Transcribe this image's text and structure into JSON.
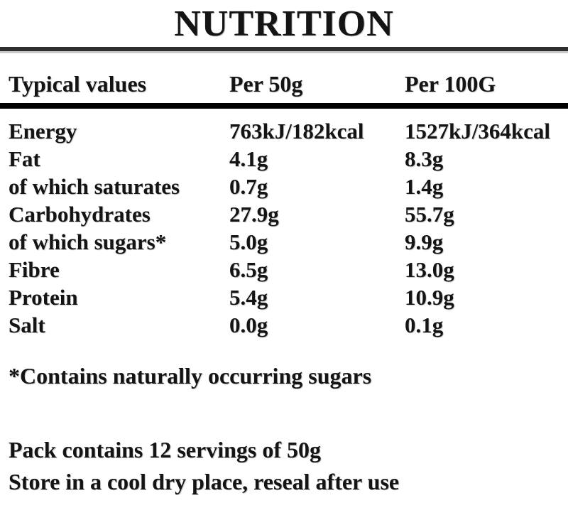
{
  "title": "NUTRITION",
  "table": {
    "headers": {
      "col_label": "Typical values",
      "col_per50": "Per 50g",
      "col_per100": "Per 100G"
    },
    "rows": [
      {
        "label": "Energy",
        "per50": "763kJ/182kcal",
        "per100": "1527kJ/364kcal"
      },
      {
        "label": "Fat",
        "per50": "4.1g",
        "per100": "8.3g"
      },
      {
        "label": "of which saturates",
        "per50": "0.7g",
        "per100": "1.4g"
      },
      {
        "label": "Carbohydrates",
        "per50": "27.9g",
        "per100": "55.7g"
      },
      {
        "label": "of which sugars*",
        "per50": "5.0g",
        "per100": "9.9g"
      },
      {
        "label": "Fibre",
        "per50": "6.5g",
        "per100": "13.0g"
      },
      {
        "label": "Protein",
        "per50": "5.4g",
        "per100": "10.9g"
      },
      {
        "label": "Salt",
        "per50": "0.0g",
        "per100": "0.1g"
      }
    ]
  },
  "footnote": "*Contains naturally occurring sugars",
  "notes": {
    "servings": "Pack contains 12 servings of 50g",
    "storage": "Store in a cool dry place, reseal after use"
  },
  "colors": {
    "background": "#ffffff",
    "text": "#141414",
    "rule_top": "#2f2f2f",
    "rule_heavy": "#000000"
  }
}
